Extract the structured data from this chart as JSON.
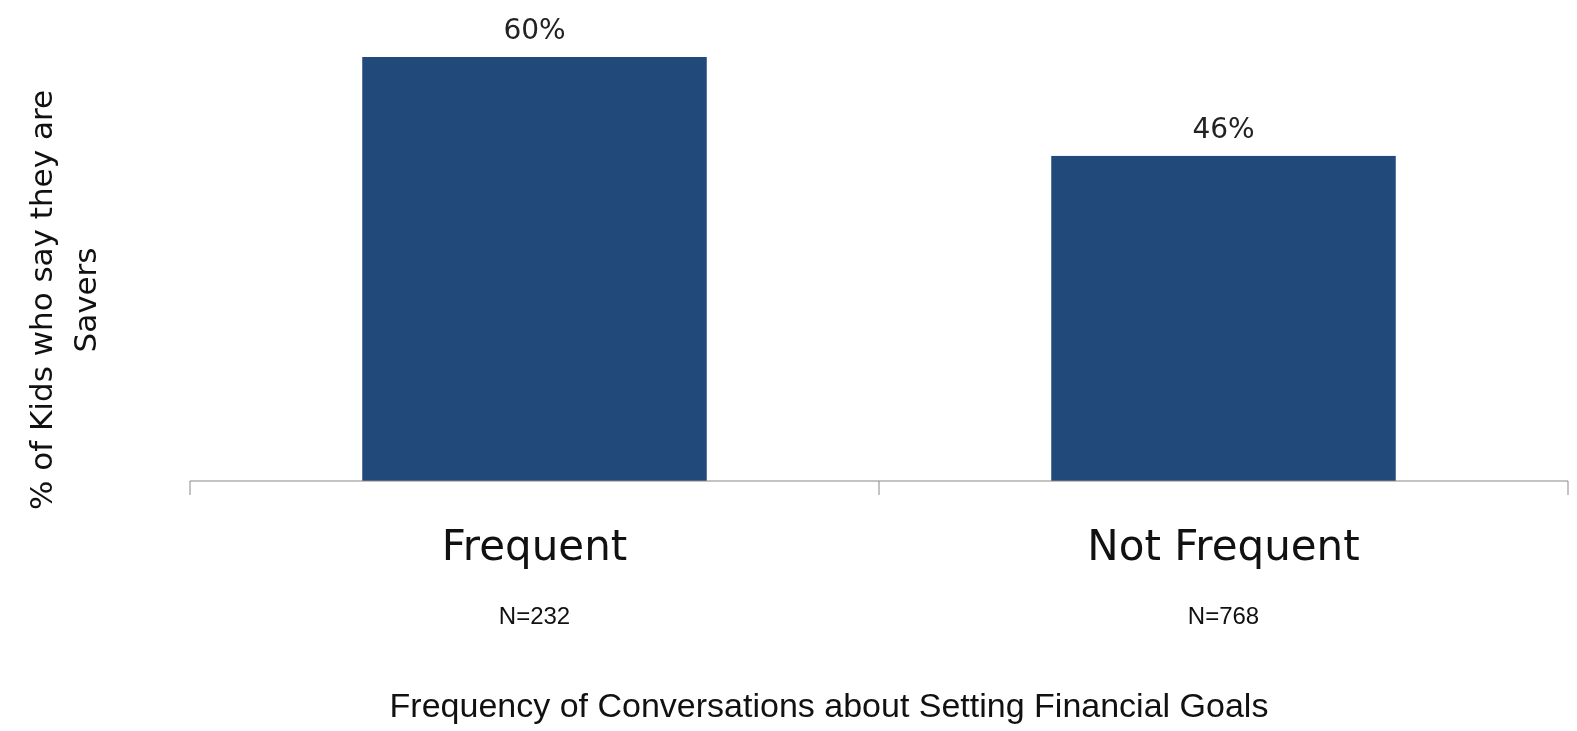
{
  "chart_data": {
    "type": "bar",
    "categories": [
      "Frequent",
      "Not Frequent"
    ],
    "values": [
      60,
      46
    ],
    "color": "#214a7b",
    "value_labels": [
      "60%",
      "46%"
    ],
    "xlabel": "Frequency of Conversations about Setting Financial Goals",
    "ylabel": "% of Kids who say they are Savers",
    "annotations": [
      "N=232",
      "N=768"
    ]
  }
}
